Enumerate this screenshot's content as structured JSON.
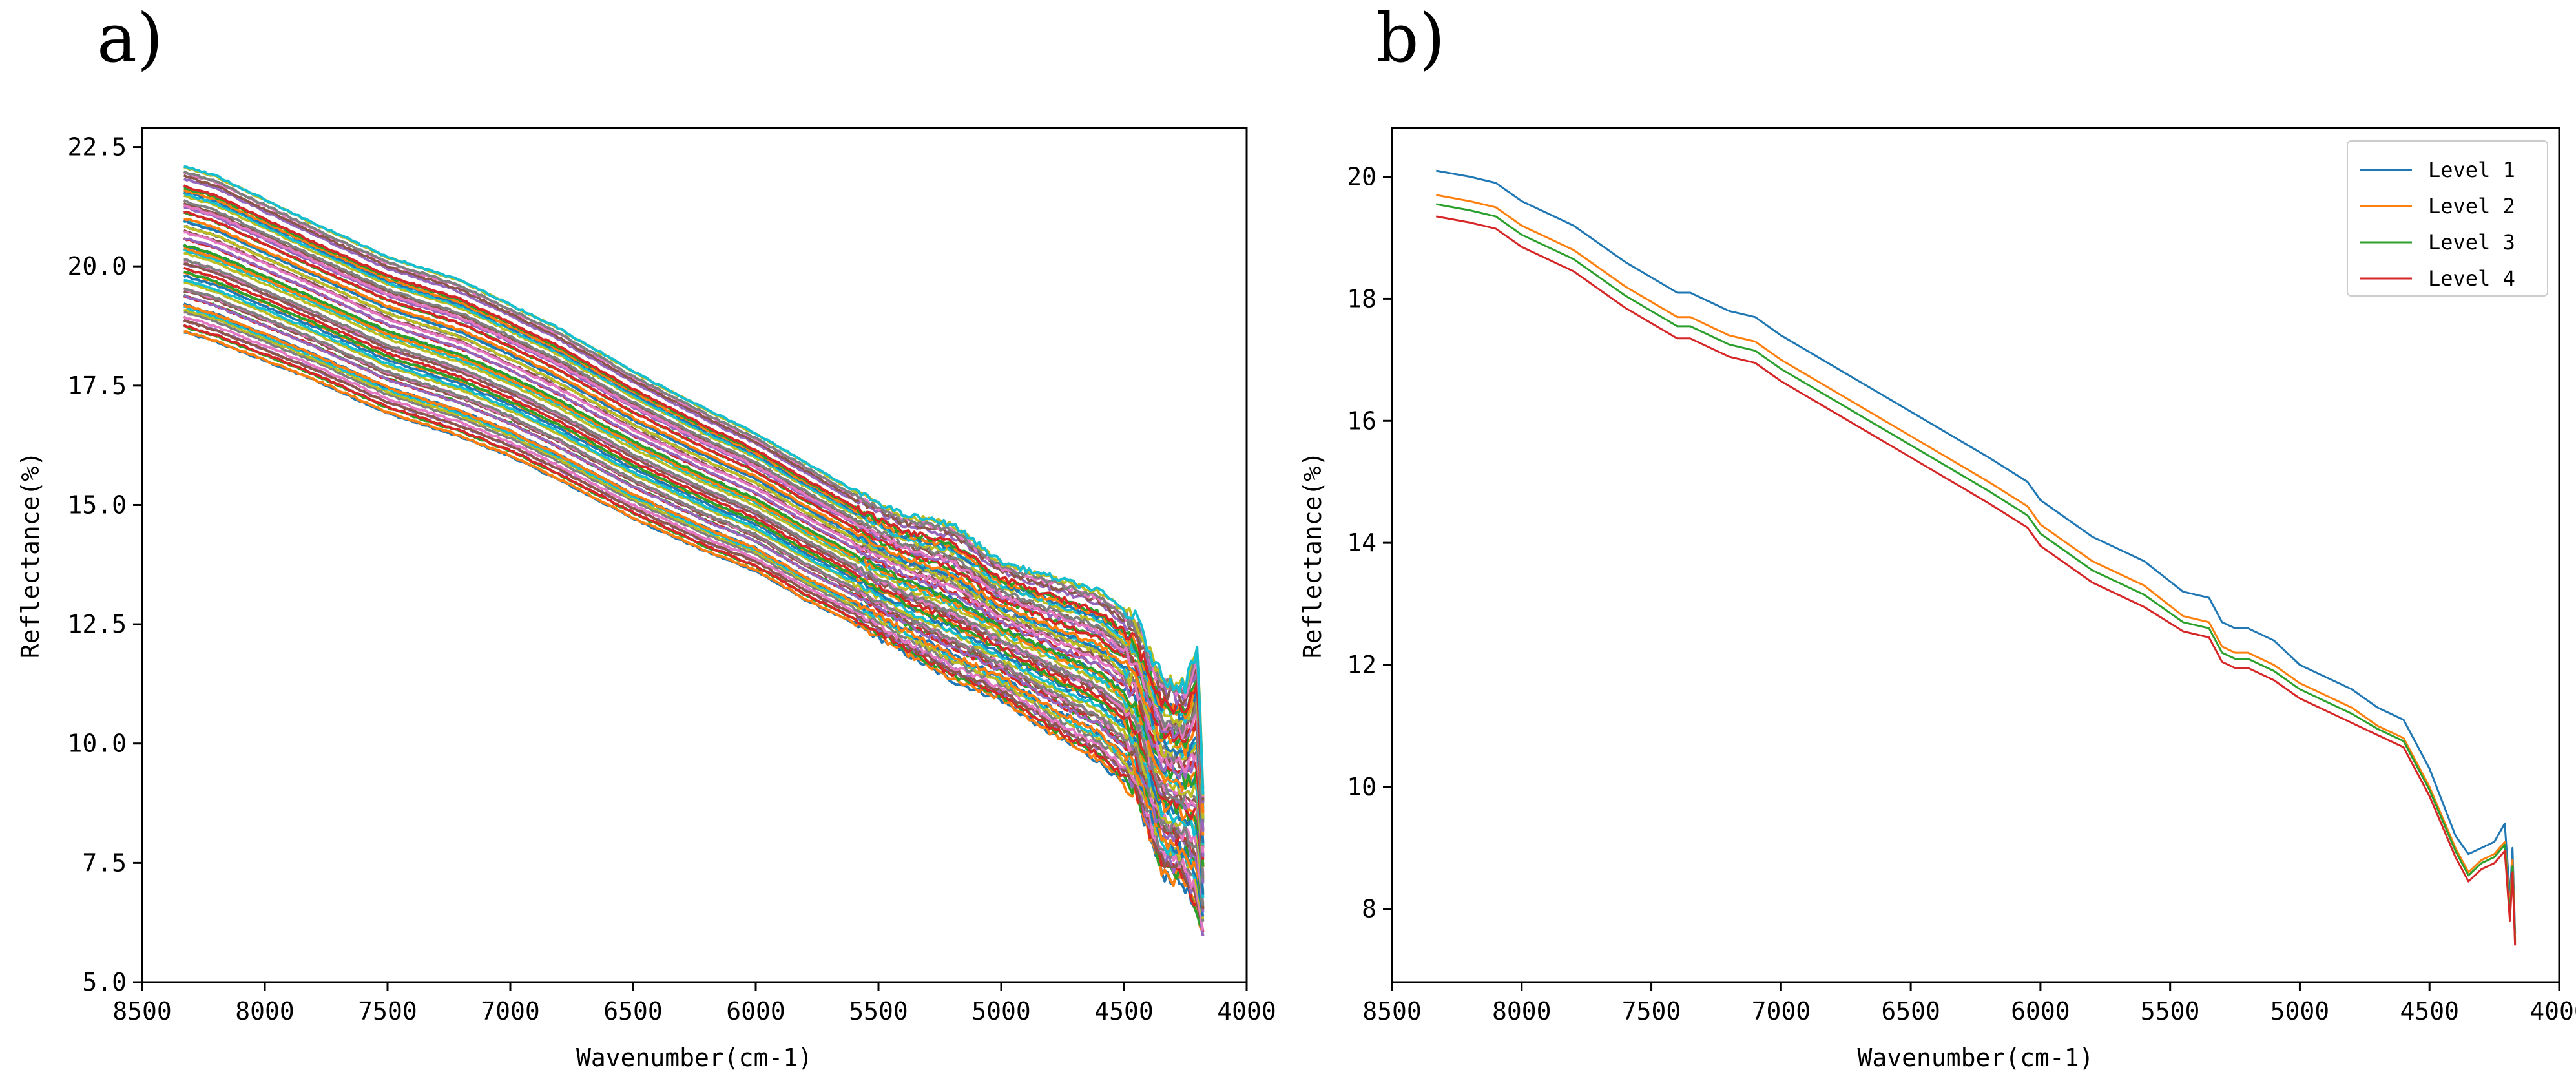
{
  "chart_data": [
    {
      "panel": "a)",
      "type": "line",
      "title": "",
      "xlabel": "Wavenumber(cm-1)",
      "ylabel": "Reflectance(%)",
      "xlim": [
        8500,
        4000
      ],
      "ylim": [
        5.0,
        22.9
      ],
      "xticks": [
        8500,
        8000,
        7500,
        7000,
        6500,
        6000,
        5500,
        5000,
        4500,
        4000
      ],
      "xtick_labels": [
        "8500",
        "8000",
        "7500",
        "7000",
        "6500",
        "6000",
        "5500",
        "5000",
        "4500",
        "4000"
      ],
      "yticks": [
        5.0,
        7.5,
        10.0,
        12.5,
        15.0,
        17.5,
        20.0,
        22.5
      ],
      "ytick_labels": [
        "5.0",
        "7.5",
        "10.0",
        "12.5",
        "15.0",
        "17.5",
        "20.0",
        "22.5"
      ],
      "grid": false,
      "legend": "none",
      "note": "Band of many overlapping sample spectra; envelope of all series shown.",
      "band_upper": {
        "x": [
          8330,
          8200,
          8000,
          7800,
          7500,
          7200,
          7000,
          6800,
          6500,
          6200,
          6000,
          5800,
          5600,
          5400,
          5200,
          5000,
          4800,
          4600,
          4450,
          4350,
          4250,
          4200,
          4170
        ],
        "y": [
          22.1,
          21.9,
          21.4,
          20.9,
          20.2,
          19.7,
          19.2,
          18.7,
          17.8,
          17.0,
          16.5,
          15.9,
          15.3,
          14.8,
          14.6,
          13.8,
          13.5,
          13.2,
          12.6,
          11.4,
          11.2,
          12.1,
          8.0
        ]
      },
      "band_lower": {
        "x": [
          8330,
          8200,
          8000,
          7800,
          7500,
          7200,
          7000,
          6800,
          6500,
          6200,
          6000,
          5800,
          5600,
          5400,
          5200,
          5000,
          4800,
          4600,
          4450,
          4350,
          4250,
          4200,
          4170
        ],
        "y": [
          18.6,
          18.4,
          18.0,
          17.6,
          16.9,
          16.4,
          16.0,
          15.5,
          14.7,
          14.0,
          13.6,
          13.0,
          12.5,
          11.9,
          11.3,
          10.9,
          10.2,
          9.6,
          8.9,
          7.3,
          7.0,
          6.3,
          5.7
        ]
      }
    },
    {
      "panel": "b)",
      "type": "line",
      "title": "",
      "xlabel": "Wavenumber(cm-1)",
      "ylabel": "Reflectance(%)",
      "xlim": [
        8500,
        4000
      ],
      "ylim": [
        6.8,
        20.8
      ],
      "xticks": [
        8500,
        8000,
        7500,
        7000,
        6500,
        6000,
        5500,
        5000,
        4500,
        4000
      ],
      "xtick_labels": [
        "8500",
        "8000",
        "7500",
        "7000",
        "6500",
        "6000",
        "5500",
        "5000",
        "4500",
        "4000"
      ],
      "yticks": [
        8,
        10,
        12,
        14,
        16,
        18,
        20
      ],
      "ytick_labels": [
        "8",
        "10",
        "12",
        "14",
        "16",
        "18",
        "20"
      ],
      "grid": false,
      "legend": "top-right",
      "x": [
        8330,
        8200,
        8100,
        8000,
        7800,
        7600,
        7400,
        7350,
        7200,
        7100,
        7000,
        6800,
        6600,
        6400,
        6200,
        6050,
        6000,
        5800,
        5600,
        5450,
        5350,
        5300,
        5250,
        5200,
        5100,
        5000,
        4800,
        4700,
        4600,
        4500,
        4400,
        4350,
        4300,
        4250,
        4210,
        4190,
        4180,
        4170
      ],
      "series": [
        {
          "name": "Level 1",
          "color": "#1f77b4",
          "values": [
            20.1,
            20.0,
            19.9,
            19.6,
            19.2,
            18.6,
            18.1,
            18.1,
            17.8,
            17.7,
            17.4,
            16.9,
            16.4,
            15.9,
            15.4,
            15.0,
            14.7,
            14.1,
            13.7,
            13.2,
            13.1,
            12.7,
            12.6,
            12.6,
            12.4,
            12.0,
            11.6,
            11.3,
            11.1,
            10.3,
            9.2,
            8.9,
            9.0,
            9.1,
            9.4,
            8.2,
            9.0,
            7.6
          ]
        },
        {
          "name": "Level 2",
          "color": "#ff7f0e",
          "values": [
            19.7,
            19.6,
            19.5,
            19.2,
            18.8,
            18.2,
            17.7,
            17.7,
            17.4,
            17.3,
            17.0,
            16.5,
            16.0,
            15.5,
            15.0,
            14.6,
            14.3,
            13.7,
            13.3,
            12.8,
            12.7,
            12.3,
            12.2,
            12.2,
            12.0,
            11.7,
            11.3,
            11.0,
            10.8,
            10.0,
            9.0,
            8.6,
            8.8,
            8.9,
            9.1,
            8.0,
            8.8,
            7.5
          ]
        },
        {
          "name": "Level 3",
          "color": "#2ca02c",
          "values": [
            19.55,
            19.45,
            19.35,
            19.05,
            18.65,
            18.05,
            17.55,
            17.55,
            17.25,
            17.15,
            16.85,
            16.35,
            15.85,
            15.35,
            14.85,
            14.45,
            14.15,
            13.55,
            13.15,
            12.7,
            12.6,
            12.2,
            12.1,
            12.1,
            11.9,
            11.6,
            11.2,
            10.95,
            10.75,
            9.95,
            8.95,
            8.55,
            8.75,
            8.85,
            9.05,
            7.9,
            8.7,
            7.45
          ]
        },
        {
          "name": "Level 4",
          "color": "#d62728",
          "values": [
            19.35,
            19.25,
            19.15,
            18.85,
            18.45,
            17.85,
            17.35,
            17.35,
            17.05,
            16.95,
            16.65,
            16.15,
            15.65,
            15.15,
            14.65,
            14.25,
            13.95,
            13.35,
            12.95,
            12.55,
            12.45,
            12.05,
            11.95,
            11.95,
            11.75,
            11.45,
            11.05,
            10.85,
            10.65,
            9.85,
            8.85,
            8.45,
            8.65,
            8.75,
            8.95,
            7.8,
            8.6,
            7.4
          ]
        }
      ]
    }
  ]
}
